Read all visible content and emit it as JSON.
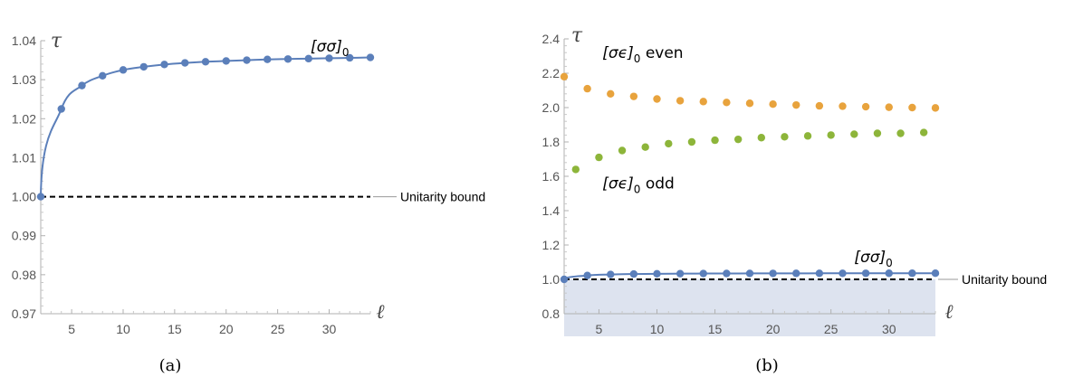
{
  "chart_data": [
    {
      "id": "a",
      "type": "scatter",
      "caption": "(a)",
      "xlabel": "ℓ",
      "ylabel": "τ",
      "xlim": [
        2,
        34
      ],
      "ylim": [
        0.97,
        1.04
      ],
      "xticks": [
        5,
        10,
        15,
        20,
        25,
        30
      ],
      "yticks": [
        "0.97",
        "0.98",
        "0.99",
        "1.00",
        "1.01",
        "1.02",
        "1.03",
        "1.04"
      ],
      "grid": false,
      "shaded_region": null,
      "reference_line": {
        "y": 1.0,
        "style": "dashed",
        "label": "Unitarity bound"
      },
      "series": [
        {
          "name": "[σσ]₀",
          "color": "#5b7fba",
          "with_curve": true,
          "x": [
            2,
            4,
            6,
            8,
            10,
            12,
            14,
            16,
            18,
            20,
            22,
            24,
            26,
            28,
            30,
            32,
            34
          ],
          "y": [
            1.0,
            1.0225,
            1.0285,
            1.031,
            1.0325,
            1.0333,
            1.0339,
            1.0343,
            1.0346,
            1.0348,
            1.035,
            1.0352,
            1.0353,
            1.0354,
            1.0355,
            1.0356,
            1.0357
          ]
        }
      ],
      "annotations": [
        {
          "text_main": "[σσ]",
          "text_sub": "0",
          "at_x": 28.2,
          "at_y": 1.0372,
          "color": "#000000"
        }
      ]
    },
    {
      "id": "b",
      "type": "scatter",
      "caption": "(b)",
      "xlabel": "ℓ",
      "ylabel": "τ",
      "xlim": [
        2,
        34
      ],
      "ylim": [
        0.8,
        2.4
      ],
      "xticks": [
        5,
        10,
        15,
        20,
        25,
        30
      ],
      "yticks": [
        "0.8",
        "1.0",
        "1.2",
        "1.4",
        "1.6",
        "1.8",
        "2.0",
        "2.2",
        "2.4"
      ],
      "grid": false,
      "shaded_region": {
        "y_from": 0.8,
        "y_to": 1.0,
        "color": "#dde3ef"
      },
      "reference_line": {
        "y": 1.0,
        "style": "dashed",
        "label": "Unitarity bound"
      },
      "series": [
        {
          "name": "[σϵ]₀ even",
          "color": "#e8a33d",
          "with_curve": false,
          "x": [
            2,
            4,
            6,
            8,
            10,
            12,
            14,
            16,
            18,
            20,
            22,
            24,
            26,
            28,
            30,
            32,
            34
          ],
          "y": [
            2.18,
            2.11,
            2.08,
            2.065,
            2.05,
            2.04,
            2.035,
            2.03,
            2.025,
            2.02,
            2.015,
            2.01,
            2.008,
            2.005,
            2.002,
            2.0,
            1.998
          ]
        },
        {
          "name": "[σϵ]₀ odd",
          "color": "#8db53a",
          "with_curve": false,
          "x": [
            3,
            5,
            7,
            9,
            11,
            13,
            15,
            17,
            19,
            21,
            23,
            25,
            27,
            29,
            31,
            33
          ],
          "y": [
            1.64,
            1.71,
            1.75,
            1.77,
            1.79,
            1.8,
            1.81,
            1.815,
            1.825,
            1.83,
            1.835,
            1.84,
            1.845,
            1.85,
            1.85,
            1.855
          ]
        },
        {
          "name": "[σσ]₀",
          "color": "#5b7fba",
          "with_curve": true,
          "x": [
            2,
            4,
            6,
            8,
            10,
            12,
            14,
            16,
            18,
            20,
            22,
            24,
            26,
            28,
            30,
            32,
            34
          ],
          "y": [
            1.0,
            1.0225,
            1.0285,
            1.031,
            1.0325,
            1.0333,
            1.0339,
            1.0343,
            1.0346,
            1.0348,
            1.035,
            1.0352,
            1.0353,
            1.0354,
            1.0355,
            1.0356,
            1.0357
          ]
        }
      ],
      "annotations": [
        {
          "text_main": "[σϵ]",
          "text_sub": "0",
          "text_after": " even",
          "at_x": 5.3,
          "at_y": 2.29,
          "color": "#000000"
        },
        {
          "text_main": "[σϵ]",
          "text_sub": "0",
          "text_after": " odd",
          "at_x": 5.3,
          "at_y": 1.53,
          "color": "#000000"
        },
        {
          "text_main": "[σσ]",
          "text_sub": "0",
          "at_x": 27.0,
          "at_y": 1.1,
          "color": "#000000"
        }
      ]
    }
  ]
}
